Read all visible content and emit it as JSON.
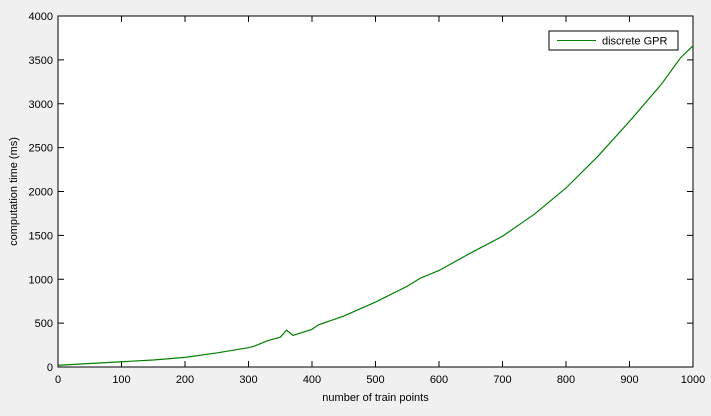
{
  "chart_data": {
    "type": "line",
    "title": "",
    "xlabel": "number of train points",
    "ylabel": "computation time (ms)",
    "xlim": [
      0,
      1000
    ],
    "ylim": [
      0,
      4000
    ],
    "xticks": [
      0,
      100,
      200,
      300,
      400,
      500,
      600,
      700,
      800,
      900,
      1000
    ],
    "yticks": [
      0,
      500,
      1000,
      1500,
      2000,
      2500,
      3000,
      3500,
      4000
    ],
    "grid": false,
    "legend_position": "top-right",
    "series": [
      {
        "name": "discrete GPR",
        "color": "#008000",
        "x": [
          1,
          50,
          100,
          150,
          200,
          250,
          300,
          310,
          330,
          350,
          360,
          370,
          400,
          410,
          450,
          500,
          550,
          570,
          600,
          650,
          700,
          750,
          800,
          850,
          900,
          950,
          980,
          1000
        ],
        "y": [
          20,
          40,
          60,
          80,
          110,
          160,
          220,
          240,
          300,
          340,
          420,
          360,
          430,
          480,
          580,
          740,
          920,
          1010,
          1100,
          1300,
          1490,
          1740,
          2040,
          2400,
          2800,
          3220,
          3520,
          3660
        ]
      }
    ]
  }
}
